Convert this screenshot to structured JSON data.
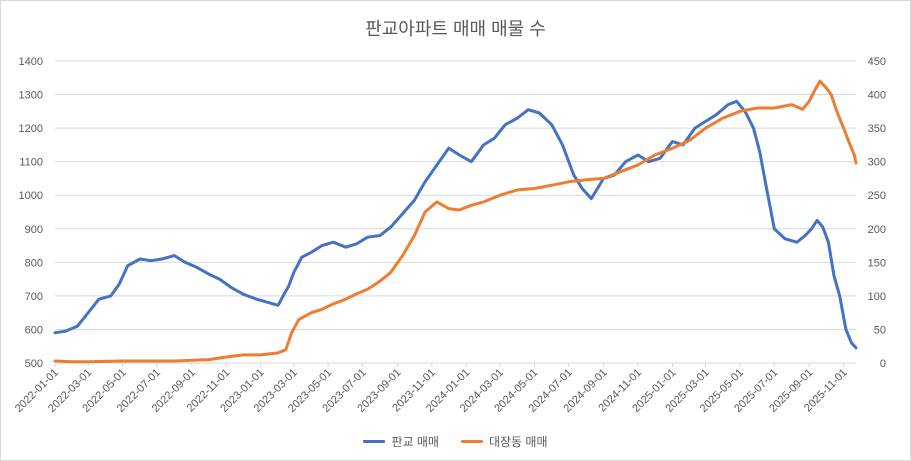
{
  "chart_data": {
    "type": "line",
    "title": "판교아파트 매매 매물 수",
    "x_ticks": [
      "2022-01-01",
      "2022-03-01",
      "2022-05-01",
      "2022-07-01",
      "2022-09-01",
      "2022-11-01",
      "2023-01-01",
      "2023-03-01",
      "2023-05-01",
      "2023-07-01",
      "2023-09-01",
      "2023-11-01",
      "2024-01-01",
      "2024-03-01",
      "2024-05-01",
      "2024-07-01",
      "2024-09-01",
      "2024-11-01",
      "2025-01-01",
      "2025-03-01",
      "2025-05-01",
      "2025-07-01",
      "2025-09-01",
      "2025-11-01"
    ],
    "y_left": {
      "ticks": [
        500,
        600,
        700,
        800,
        900,
        1000,
        1100,
        1200,
        1300,
        1400
      ],
      "range": [
        500,
        1400
      ]
    },
    "y_right": {
      "ticks": [
        0,
        50,
        100,
        150,
        200,
        250,
        300,
        350,
        400,
        450
      ],
      "range": [
        0,
        450
      ]
    },
    "x_range": [
      "2022-01-01",
      "2025-11-23"
    ],
    "grid": true,
    "legend_position": "bottom",
    "colors": {
      "series1": "#4472c4",
      "series2": "#ed7d31",
      "grid": "#d9d9d9",
      "text": "#595959"
    },
    "series": [
      {
        "name": "판교 매매",
        "axis": "left",
        "x": [
          "2022-01-01",
          "2022-01-20",
          "2022-02-10",
          "2022-03-01",
          "2022-03-20",
          "2022-04-10",
          "2022-04-25",
          "2022-05-10",
          "2022-06-01",
          "2022-06-20",
          "2022-07-10",
          "2022-08-01",
          "2022-08-20",
          "2022-09-10",
          "2022-10-01",
          "2022-10-20",
          "2022-11-10",
          "2022-12-01",
          "2022-12-25",
          "2023-01-15",
          "2023-02-01",
          "2023-02-10",
          "2023-02-20",
          "2023-03-01",
          "2023-03-15",
          "2023-04-01",
          "2023-04-20",
          "2023-05-10",
          "2023-06-01",
          "2023-06-20",
          "2023-07-10",
          "2023-08-01",
          "2023-08-20",
          "2023-09-10",
          "2023-10-01",
          "2023-10-20",
          "2023-11-10",
          "2023-12-01",
          "2023-12-20",
          "2024-01-10",
          "2024-02-01",
          "2024-02-20",
          "2024-03-10",
          "2024-04-01",
          "2024-04-20",
          "2024-05-10",
          "2024-06-01",
          "2024-06-20",
          "2024-07-10",
          "2024-07-25",
          "2024-08-10",
          "2024-09-01",
          "2024-09-20",
          "2024-10-10",
          "2024-11-01",
          "2024-11-20",
          "2024-12-10",
          "2025-01-01",
          "2025-01-20",
          "2025-02-10",
          "2025-03-01",
          "2025-03-20",
          "2025-04-10",
          "2025-04-25",
          "2025-05-10",
          "2025-05-25",
          "2025-06-05",
          "2025-06-15",
          "2025-07-01",
          "2025-07-20",
          "2025-08-10",
          "2025-08-25",
          "2025-09-05",
          "2025-09-15",
          "2025-09-25",
          "2025-10-05",
          "2025-10-15",
          "2025-10-25",
          "2025-11-05",
          "2025-11-15",
          "2025-11-23"
        ],
        "values": [
          590,
          595,
          610,
          650,
          690,
          700,
          735,
          790,
          810,
          805,
          810,
          820,
          800,
          785,
          765,
          750,
          725,
          705,
          690,
          680,
          672,
          700,
          730,
          770,
          815,
          830,
          850,
          860,
          845,
          855,
          875,
          880,
          905,
          945,
          985,
          1040,
          1090,
          1140,
          1120,
          1100,
          1150,
          1170,
          1210,
          1230,
          1255,
          1245,
          1210,
          1150,
          1060,
          1020,
          990,
          1050,
          1060,
          1100,
          1120,
          1100,
          1110,
          1160,
          1150,
          1200,
          1220,
          1240,
          1270,
          1280,
          1250,
          1200,
          1130,
          1040,
          900,
          870,
          860,
          880,
          900,
          925,
          905,
          860,
          760,
          700,
          600,
          560,
          545
        ]
      },
      {
        "name": "대장동 매매",
        "axis": "right",
        "x": [
          "2022-01-01",
          "2022-02-01",
          "2022-03-01",
          "2022-05-01",
          "2022-07-01",
          "2022-08-01",
          "2022-09-01",
          "2022-10-01",
          "2022-11-01",
          "2022-12-01",
          "2023-01-01",
          "2023-02-01",
          "2023-02-15",
          "2023-02-25",
          "2023-03-10",
          "2023-04-01",
          "2023-04-20",
          "2023-05-10",
          "2023-06-01",
          "2023-06-20",
          "2023-07-10",
          "2023-08-01",
          "2023-08-20",
          "2023-09-10",
          "2023-10-01",
          "2023-10-20",
          "2023-11-10",
          "2023-12-01",
          "2023-12-20",
          "2024-01-10",
          "2024-02-01",
          "2024-03-01",
          "2024-04-01",
          "2024-05-01",
          "2024-06-01",
          "2024-07-01",
          "2024-08-01",
          "2024-09-01",
          "2024-10-01",
          "2024-11-01",
          "2024-12-01",
          "2025-01-01",
          "2025-02-01",
          "2025-03-01",
          "2025-04-01",
          "2025-05-01",
          "2025-06-01",
          "2025-07-01",
          "2025-08-01",
          "2025-08-20",
          "2025-09-01",
          "2025-09-10",
          "2025-09-20",
          "2025-10-01",
          "2025-10-10",
          "2025-10-20",
          "2025-11-01",
          "2025-11-10",
          "2025-11-20",
          "2025-11-23"
        ],
        "values": [
          3,
          2,
          2,
          3,
          3,
          3,
          4,
          5,
          9,
          12,
          12,
          15,
          20,
          45,
          65,
          75,
          80,
          88,
          95,
          103,
          110,
          122,
          135,
          160,
          190,
          225,
          240,
          230,
          228,
          235,
          240,
          250,
          258,
          260,
          265,
          270,
          273,
          275,
          285,
          295,
          310,
          320,
          332,
          350,
          365,
          375,
          380,
          380,
          385,
          378,
          390,
          405,
          420,
          410,
          400,
          375,
          350,
          330,
          310,
          298
        ]
      }
    ]
  }
}
